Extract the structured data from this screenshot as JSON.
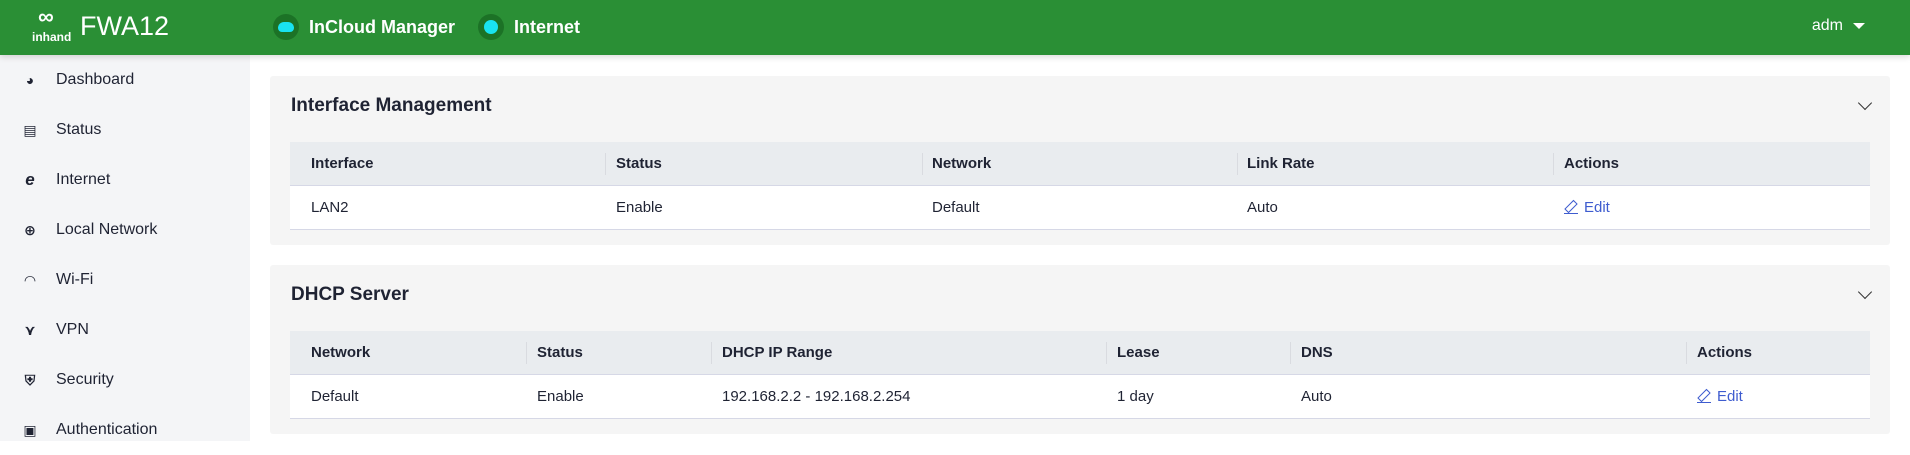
{
  "header": {
    "brand": "inhand",
    "model": "FWA12",
    "status": [
      {
        "label": "InCloud Manager",
        "icon": "cloud-icon"
      },
      {
        "label": "Internet",
        "icon": "status-dot-icon"
      }
    ],
    "user": "adm",
    "colors": {
      "bar": "#2a8f35",
      "indicator": "#19e3f0"
    }
  },
  "sidebar": {
    "items": [
      {
        "label": "Dashboard",
        "icon": "dashboard-icon"
      },
      {
        "label": "Status",
        "icon": "status-icon"
      },
      {
        "label": "Internet",
        "icon": "internet-icon"
      },
      {
        "label": "Local Network",
        "icon": "globe-icon"
      },
      {
        "label": "Wi-Fi",
        "icon": "wifi-icon"
      },
      {
        "label": "VPN",
        "icon": "vpn-icon"
      },
      {
        "label": "Security",
        "icon": "shield-icon"
      },
      {
        "label": "Authentication",
        "icon": "authentication-icon"
      }
    ]
  },
  "interface_panel": {
    "title": "Interface Management",
    "columns": [
      "Interface",
      "Status",
      "Network",
      "Link Rate",
      "Actions"
    ],
    "rows": [
      [
        "LAN2",
        "Enable",
        "Default",
        "Auto",
        "Edit"
      ]
    ]
  },
  "dhcp_panel": {
    "title": "DHCP Server",
    "columns": [
      "Network",
      "Status",
      "DHCP IP Range",
      "Lease",
      "DNS",
      "Actions"
    ],
    "rows": [
      [
        "Default",
        "Enable",
        "192.168.2.2 - 192.168.2.254",
        "1 day",
        "Auto",
        "Edit"
      ]
    ]
  }
}
